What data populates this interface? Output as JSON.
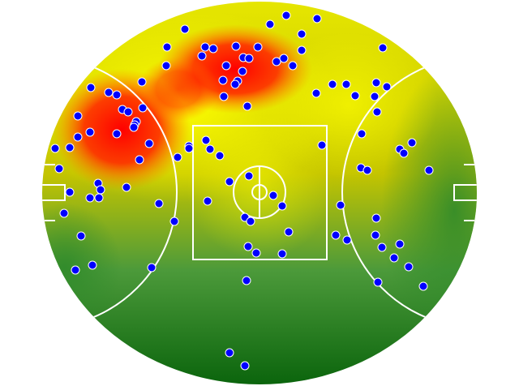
{
  "field": {
    "type": "heatmap-with-events",
    "colors": {
      "low": "#0a6e0f",
      "mid": "#c8c800",
      "high_yellow": "#ffff00",
      "hot": "#ff0000",
      "markings": "#ffffff",
      "event_dot": "#0000ff",
      "event_dot_outline": "#ffffff"
    }
  }
}
